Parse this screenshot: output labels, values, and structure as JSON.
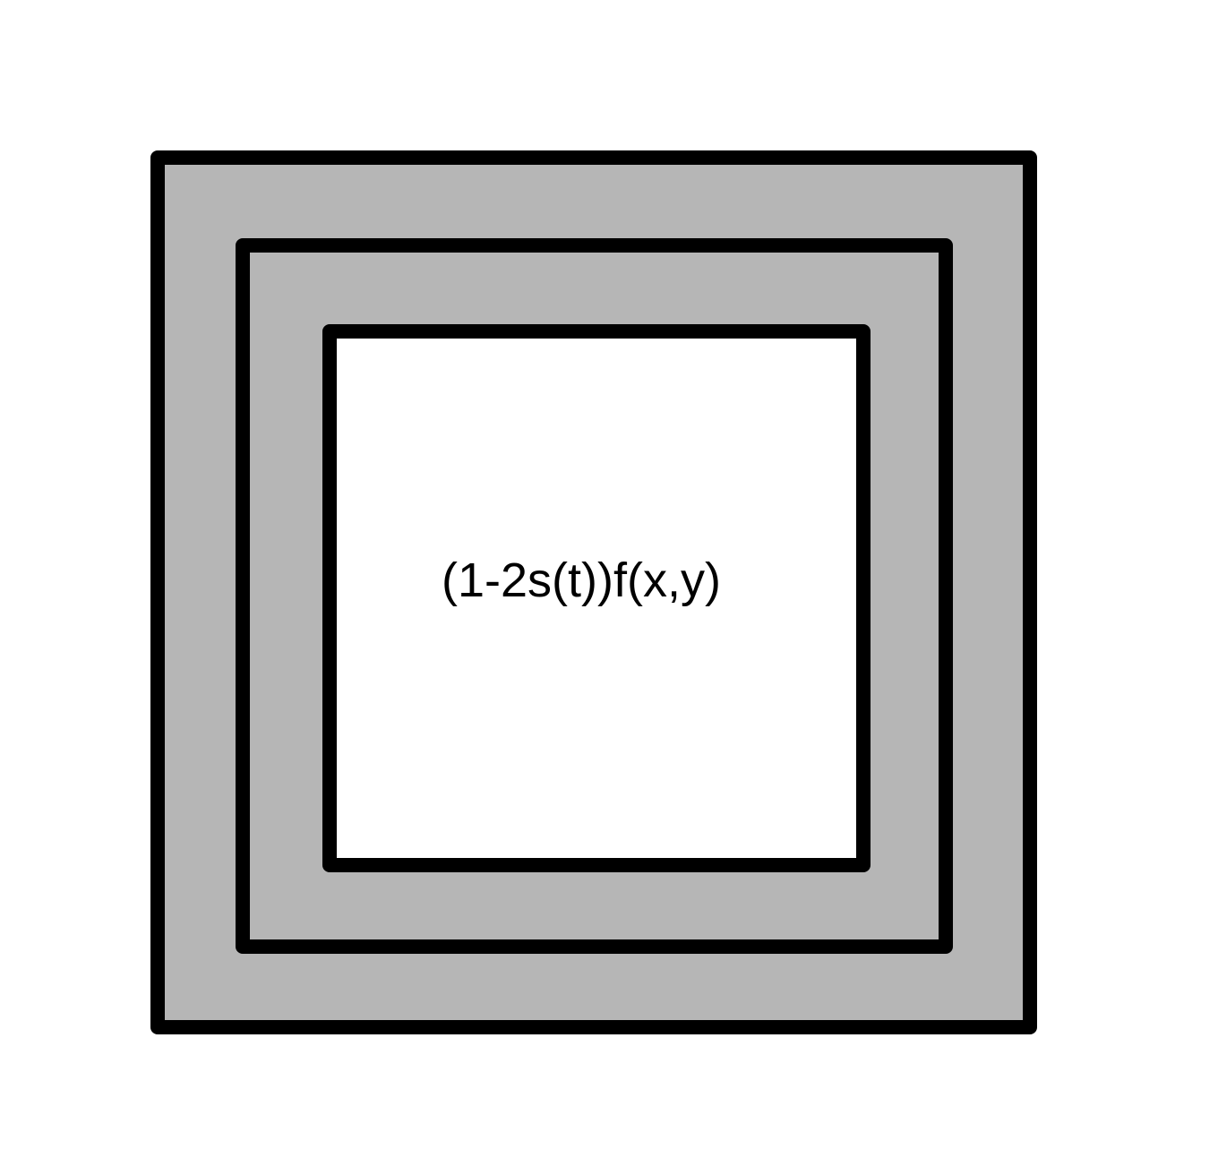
{
  "diagram": {
    "label": "(1-2s(t))f(x,y)",
    "colors": {
      "band_fill": "#b6b6b6",
      "inner_fill": "#ffffff",
      "stroke": "#000000",
      "text": "#000000"
    }
  }
}
